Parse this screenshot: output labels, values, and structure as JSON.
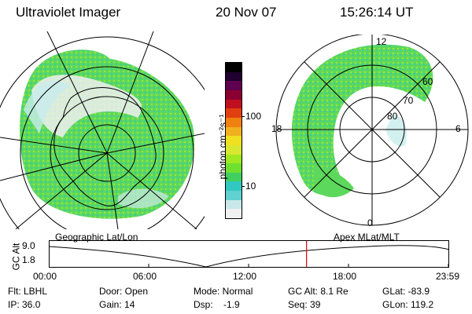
{
  "header": {
    "instrument": "Ultraviolet Imager",
    "date": "20 Nov 07",
    "time": "15:26:14 UT"
  },
  "colorbar": {
    "label": "photon cm⁻²s⁻¹",
    "ticks": [
      "100",
      "10"
    ],
    "colors": [
      "#f0f0f0",
      "#c8e8e8",
      "#60d0d0",
      "#30c8c0",
      "#40d060",
      "#70e030",
      "#a0e820",
      "#d8e830",
      "#f0e020",
      "#f0b020",
      "#f08010",
      "#e04010",
      "#c01020",
      "#8a0030",
      "#600050",
      "#200030",
      "#000000"
    ]
  },
  "left_map": {
    "caption": "Geographic Lat/Lon"
  },
  "right_map": {
    "caption": "Apex  MLat/MLT",
    "mlt_labels": [
      "12",
      "18",
      "6",
      "0"
    ],
    "lat_labels": [
      "60",
      "70",
      "80"
    ]
  },
  "altitude_plot": {
    "ylabel": "GC Alt",
    "yticks": [
      "9.0",
      "1.8"
    ],
    "xticks": [
      "00:00",
      "06:00",
      "12:00",
      "18:00",
      "23:59"
    ],
    "current_time_fraction": 0.645,
    "marker_color": "#e00000"
  },
  "status": {
    "filter": "Flt: LBHL",
    "ip": "IP: 36.0",
    "door": "Door: Open",
    "gain": "Gain: 14",
    "mode": "Mode: Normal",
    "dsp": "Dsp:    -1.9",
    "gc_alt": "GC Alt: 8.1 Re",
    "seq": "Seq: 39",
    "glat": "GLat: -83.9",
    "glon": "GLon: 119.2"
  }
}
